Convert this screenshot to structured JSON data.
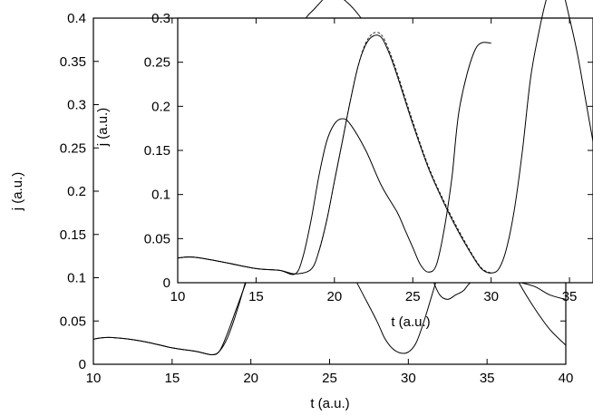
{
  "chart_data": [
    {
      "type": "line",
      "xlabel": "t (a.u.)",
      "ylabel": "j (a.u.)",
      "xlim": [
        10,
        40
      ],
      "ylim": [
        0,
        0.4
      ],
      "xticks": [
        10,
        15,
        20,
        25,
        30,
        35,
        40
      ],
      "yticks": [
        0,
        0.05,
        0.1,
        0.15,
        0.2,
        0.25,
        0.3,
        0.35,
        0.4
      ],
      "xtick_labels": [
        "10",
        "15",
        "20",
        "25",
        "30",
        "35",
        "40"
      ],
      "ytick_labels": [
        "0",
        "0.05",
        "0.1",
        "0.15",
        "0.2",
        "0.25",
        "0.3",
        "0.35",
        "0.4"
      ],
      "series": [
        {
          "style": "solid",
          "x": [
            10,
            11,
            13,
            15,
            16.5,
            17.5,
            18,
            18.5,
            19,
            19.5,
            20,
            20.5,
            21,
            21.5,
            22,
            22.5,
            23,
            23.5,
            24,
            24.5,
            25,
            26,
            27,
            28,
            29,
            29.5,
            30,
            30.5,
            31,
            31.5,
            32,
            32.5,
            33,
            33.5,
            34,
            35,
            36,
            37,
            38,
            39,
            40
          ],
          "y": [
            0.029,
            0.031,
            0.027,
            0.019,
            0.015,
            0.011,
            0.015,
            0.035,
            0.06,
            0.085,
            0.11,
            0.135,
            0.165,
            0.22,
            0.32,
            0.36,
            0.38,
            0.4,
            0.41,
            0.42,
            0.43,
            0.42,
            0.4,
            0.37,
            0.32,
            0.28,
            0.22,
            0.17,
            0.13,
            0.1,
            0.08,
            0.075,
            0.08,
            0.085,
            0.095,
            0.1,
            0.1,
            0.095,
            0.09,
            0.08,
            0.075
          ]
        },
        {
          "style": "solid",
          "x": [
            10,
            11,
            13,
            15,
            16.5,
            17.5,
            18,
            18.5,
            19,
            19.5,
            20,
            20.5,
            21,
            21.5,
            22,
            22.5,
            23,
            23.5,
            24,
            25,
            26,
            27,
            28,
            28.5,
            29,
            29.5,
            30,
            30.5,
            31,
            31.5,
            32,
            32.5,
            33,
            33.5,
            34,
            35,
            36,
            37,
            38,
            39,
            40
          ],
          "y": [
            0.029,
            0.031,
            0.027,
            0.019,
            0.015,
            0.011,
            0.015,
            0.03,
            0.055,
            0.085,
            0.12,
            0.16,
            0.195,
            0.22,
            0.23,
            0.232,
            0.225,
            0.21,
            0.19,
            0.16,
            0.12,
            0.085,
            0.05,
            0.03,
            0.018,
            0.013,
            0.014,
            0.025,
            0.05,
            0.08,
            0.11,
            0.135,
            0.155,
            0.17,
            0.175,
            0.16,
            0.13,
            0.095,
            0.065,
            0.04,
            0.022
          ]
        }
      ]
    },
    {
      "type": "line",
      "xlabel": "t (a.u.)",
      "ylabel": "j (a.u.)",
      "xlim": [
        10,
        36.5
      ],
      "ylim": [
        0,
        0.3
      ],
      "xticks": [
        10,
        15,
        20,
        25,
        30,
        35
      ],
      "yticks": [
        0,
        0.05,
        0.1,
        0.15,
        0.2,
        0.25,
        0.3
      ],
      "xtick_labels": [
        "10",
        "15",
        "20",
        "25",
        "30",
        "35"
      ],
      "ytick_labels": [
        "0",
        "0.05",
        "0.1",
        "0.15",
        "0.2",
        "0.25",
        "0.3"
      ],
      "series": [
        {
          "style": "solid",
          "x": [
            10,
            11,
            13,
            15,
            16.5,
            17.5,
            18.5,
            19,
            19.5,
            20,
            20.5,
            21,
            21.5,
            22,
            22.5,
            23,
            23.5,
            24,
            25,
            26,
            27,
            28,
            29,
            29.5,
            30,
            30.5,
            31,
            31.5,
            32,
            32.5,
            33,
            33.5,
            34,
            34.5,
            35,
            35.5,
            36,
            36.5
          ],
          "y": [
            0.028,
            0.029,
            0.023,
            0.016,
            0.014,
            0.01,
            0.015,
            0.035,
            0.07,
            0.115,
            0.16,
            0.205,
            0.245,
            0.27,
            0.28,
            0.278,
            0.26,
            0.235,
            0.18,
            0.13,
            0.09,
            0.055,
            0.025,
            0.014,
            0.011,
            0.016,
            0.04,
            0.085,
            0.15,
            0.23,
            0.28,
            0.32,
            0.345,
            0.335,
            0.3,
            0.26,
            0.21,
            0.16
          ]
        },
        {
          "style": "dashed",
          "x": [
            19,
            19.5,
            20,
            20.5,
            21,
            21.5,
            22,
            22.5,
            23,
            23.5,
            24,
            25,
            26,
            27,
            28,
            29,
            29.5,
            30
          ],
          "y": [
            0.035,
            0.07,
            0.115,
            0.16,
            0.205,
            0.245,
            0.272,
            0.283,
            0.281,
            0.263,
            0.238,
            0.183,
            0.132,
            0.092,
            0.057,
            0.026,
            0.015,
            0.011
          ]
        },
        {
          "style": "solid",
          "x": [
            10,
            11,
            13,
            15,
            16.5,
            17.5,
            18,
            18.5,
            19,
            19.5,
            20,
            20.5,
            21,
            22,
            23,
            24,
            24.5,
            25,
            25.5,
            26,
            26.5,
            27,
            27.5,
            28,
            29,
            30
          ],
          "y": [
            0.028,
            0.029,
            0.023,
            0.016,
            0.014,
            0.01,
            0.03,
            0.07,
            0.12,
            0.16,
            0.18,
            0.186,
            0.18,
            0.15,
            0.11,
            0.08,
            0.06,
            0.04,
            0.02,
            0.012,
            0.02,
            0.06,
            0.12,
            0.2,
            0.265,
            0.272
          ]
        }
      ]
    }
  ]
}
